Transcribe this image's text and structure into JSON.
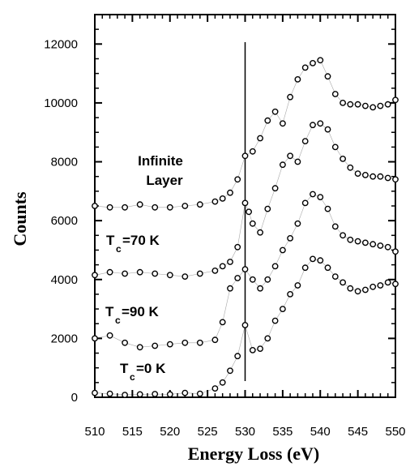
{
  "chart_data": {
    "type": "scatter",
    "title": "",
    "xlabel": "Energy Loss (eV)",
    "ylabel": "Counts",
    "xlim": [
      510,
      550
    ],
    "ylim": [
      0,
      13000
    ],
    "x_ticks": [
      510,
      515,
      520,
      525,
      530,
      535,
      540,
      545,
      550
    ],
    "y_ticks": [
      0,
      2000,
      4000,
      6000,
      8000,
      10000,
      12000
    ],
    "grid": false,
    "reference_line_x": 530,
    "annotations": [
      {
        "lines": [
          "Infinite",
          "Layer"
        ],
        "series": "Infinite Layer"
      },
      {
        "text": "T",
        "sub": "c",
        "tail": "=70  K",
        "series": "Tc=70 K"
      },
      {
        "text": "T",
        "sub": "c",
        "tail": "=90  K",
        "series": "Tc=90 K"
      },
      {
        "text": "T",
        "sub": "c",
        "tail": "=0  K",
        "series": "Tc=0 K"
      }
    ],
    "series": [
      {
        "name": "Infinite Layer",
        "x": [
          510,
          512,
          514,
          516,
          518,
          520,
          522,
          524,
          526,
          527,
          528,
          529,
          530,
          531,
          532,
          533,
          534,
          535,
          536,
          537,
          538,
          539,
          540,
          541,
          542,
          543,
          544,
          545,
          546,
          547,
          548,
          549,
          550
        ],
        "y": [
          6500,
          6450,
          6450,
          6550,
          6450,
          6450,
          6500,
          6550,
          6650,
          6750,
          6950,
          7400,
          8200,
          8350,
          8800,
          9400,
          9700,
          9300,
          10200,
          10800,
          11200,
          11350,
          11450,
          10900,
          10300,
          10000,
          9950,
          9950,
          9900,
          9850,
          9900,
          9950,
          10100
        ]
      },
      {
        "name": "Tc=70 K",
        "x": [
          510,
          512,
          514,
          516,
          518,
          520,
          522,
          524,
          526,
          527,
          528,
          529,
          530,
          530.5,
          531,
          532,
          533,
          534,
          535,
          536,
          537,
          538,
          539,
          540,
          541,
          542,
          543,
          544,
          545,
          546,
          547,
          548,
          549,
          550
        ],
        "y": [
          4150,
          4250,
          4200,
          4250,
          4200,
          4150,
          4100,
          4200,
          4300,
          4450,
          4600,
          5100,
          6600,
          6300,
          5900,
          5600,
          6400,
          7100,
          7900,
          8200,
          8000,
          8700,
          9250,
          9300,
          9100,
          8500,
          8100,
          7800,
          7600,
          7550,
          7500,
          7500,
          7450,
          7400
        ]
      },
      {
        "name": "Tc=90 K",
        "x": [
          510,
          512,
          514,
          516,
          518,
          520,
          522,
          524,
          526,
          527,
          528,
          529,
          530,
          531,
          532,
          533,
          534,
          535,
          536,
          537,
          538,
          539,
          540,
          541,
          542,
          543,
          544,
          545,
          546,
          547,
          548,
          549,
          550
        ],
        "y": [
          2000,
          2100,
          1850,
          1700,
          1750,
          1800,
          1850,
          1850,
          1950,
          2550,
          3700,
          4050,
          4350,
          4000,
          3700,
          4000,
          4450,
          5000,
          5400,
          5900,
          6600,
          6900,
          6800,
          6400,
          5800,
          5500,
          5350,
          5300,
          5250,
          5200,
          5150,
          5100,
          4950
        ]
      },
      {
        "name": "Tc=0 K",
        "x": [
          510,
          512,
          514,
          516,
          518,
          520,
          522,
          524,
          526,
          527,
          528,
          529,
          530,
          531,
          532,
          533,
          534,
          535,
          536,
          537,
          538,
          539,
          540,
          541,
          542,
          543,
          544,
          545,
          546,
          547,
          548,
          549,
          550
        ],
        "y": [
          150,
          120,
          80,
          100,
          110,
          100,
          150,
          120,
          300,
          500,
          900,
          1400,
          2450,
          1600,
          1650,
          2000,
          2600,
          3000,
          3500,
          3800,
          4400,
          4700,
          4650,
          4400,
          4100,
          3900,
          3700,
          3600,
          3650,
          3750,
          3800,
          3900,
          3850
        ]
      }
    ]
  }
}
